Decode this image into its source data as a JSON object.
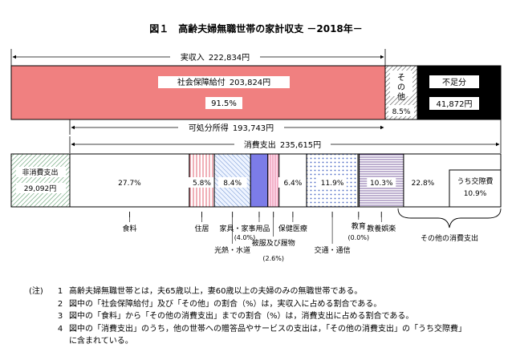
{
  "chart_data": {
    "type": "bar",
    "title": "図１　高齢夫婦無職世帯の家計収支 －2018年－",
    "income": {
      "label": "実収入",
      "value": "222,834円",
      "segments": [
        {
          "name": "社会保障給付",
          "amount": "203,824円",
          "pct": 91.5,
          "pct_text": "91.5%",
          "color": "#f08080"
        },
        {
          "name": "その他",
          "pct": 8.5,
          "pct_text": "8.5%",
          "pattern": "diagonal"
        },
        {
          "name": "不足分",
          "amount": "41,872円",
          "color": "#000000"
        }
      ]
    },
    "disposable": {
      "label": "可処分所得",
      "value": "193,743円"
    },
    "consumption": {
      "label": "消費支出",
      "value": "235,615円"
    },
    "nonconsumption": {
      "name": "非消費支出",
      "amount": "29,092円"
    },
    "expenditure": [
      {
        "name": "食料",
        "pct": 27.7,
        "pct_text": "27.7%"
      },
      {
        "name": "住居",
        "pct": 5.8,
        "pct_text": "5.8%"
      },
      {
        "name": "光熱・水道",
        "pct": 8.4,
        "pct_text": "8.4%"
      },
      {
        "name": "家具・家事用品",
        "pct": 4.0,
        "pct_text": "(4.0%)"
      },
      {
        "name": "被服及び履物",
        "pct": 2.6,
        "pct_text": "(2.6%)"
      },
      {
        "name": "保健医療",
        "pct": 6.4,
        "pct_text": "6.4%"
      },
      {
        "name": "交通・通信",
        "pct": 11.9,
        "pct_text": "11.9%"
      },
      {
        "name": "教育",
        "pct": 0.0,
        "pct_text": "(0.0%)"
      },
      {
        "name": "教養娯楽",
        "pct": 10.3,
        "pct_text": "10.3%"
      },
      {
        "name": "その他の消費支出",
        "pct": 22.8,
        "pct_text": "22.8%"
      }
    ],
    "social_expense": {
      "name": "うち交際費",
      "pct": 10.9,
      "pct_text": "10.9%"
    }
  },
  "notes": {
    "label": "(注)",
    "items": [
      {
        "num": "1",
        "text": "高齢夫婦無職世帯とは，夫65歳以上，妻60歳以上の夫婦のみの無職世帯である。"
      },
      {
        "num": "2",
        "text": "図中の「社会保障給付」及び「その他」の割合（%）は，実収入に占める割合である。"
      },
      {
        "num": "3",
        "text": "図中の「食料」から「その他の消費支出」までの割合（%）は，消費支出に占める割合である。"
      },
      {
        "num": "4",
        "text": "図中の「消費支出」のうち，他の世帯への贈答品やサービスの支出は，「その他の消費支出」の「うち交際費」"
      },
      {
        "num": "",
        "text": "に含まれている。"
      }
    ]
  }
}
